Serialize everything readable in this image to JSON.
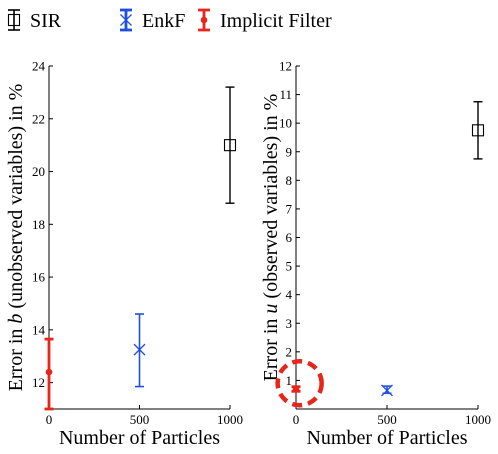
{
  "legend": {
    "items": [
      {
        "label": "SIR",
        "color": "#000000",
        "marker": "square"
      },
      {
        "label": "EnkF",
        "color": "#1f4fe0",
        "marker": "x"
      },
      {
        "label": "Implicit Filter",
        "color": "#e8251a",
        "marker": "dot"
      }
    ]
  },
  "chart_data": [
    {
      "type": "scatter",
      "xlabel": "Number of Particles",
      "ylabel_prefix": "Error in ",
      "ylabel_var": "b",
      "ylabel_suffix": " (unobserved variables) in %",
      "xlim": [
        0,
        1000
      ],
      "ylim": [
        11,
        24
      ],
      "xticks": [
        0,
        500,
        1000
      ],
      "yticks": [
        12,
        14,
        16,
        18,
        20,
        22,
        24
      ],
      "series": [
        {
          "name": "SIR",
          "color": "#000000",
          "marker": "square",
          "points": [
            {
              "x": 1000,
              "y": 21.0,
              "ylow": 18.8,
              "yhigh": 23.2
            }
          ]
        },
        {
          "name": "EnkF",
          "color": "#1f4fe0",
          "marker": "x",
          "points": [
            {
              "x": 500,
              "y": 13.25,
              "ylow": 11.85,
              "yhigh": 14.6
            }
          ]
        },
        {
          "name": "Implicit Filter",
          "color": "#e8251a",
          "marker": "dot",
          "points": [
            {
              "x": 0,
              "y": 12.4,
              "ylow": 11.0,
              "yhigh": 13.65
            }
          ]
        }
      ]
    },
    {
      "type": "scatter",
      "xlabel": "Number of Particles",
      "ylabel_prefix": "Error in ",
      "ylabel_var": "u",
      "ylabel_suffix": " (observed variables) in %",
      "xlim": [
        0,
        1000
      ],
      "ylim": [
        0,
        12
      ],
      "xticks": [
        0,
        500,
        1000
      ],
      "yticks": [
        1,
        2,
        3,
        4,
        5,
        6,
        7,
        8,
        9,
        10,
        11,
        12
      ],
      "series": [
        {
          "name": "SIR",
          "color": "#000000",
          "marker": "square",
          "points": [
            {
              "x": 1000,
              "y": 9.75,
              "ylow": 8.75,
              "yhigh": 10.75
            }
          ]
        },
        {
          "name": "EnkF",
          "color": "#1f4fe0",
          "marker": "x",
          "points": [
            {
              "x": 500,
              "y": 0.65,
              "ylow": 0.55,
              "yhigh": 0.8
            }
          ]
        },
        {
          "name": "Implicit Filter",
          "color": "#e8251a",
          "marker": "dot",
          "points": [
            {
              "x": 0,
              "y": 0.7,
              "ylow": 0.62,
              "yhigh": 0.78
            }
          ]
        }
      ],
      "annotation": {
        "shape": "dashed-circle",
        "color": "#e8251a",
        "x": 20,
        "y": 0.9
      }
    }
  ]
}
